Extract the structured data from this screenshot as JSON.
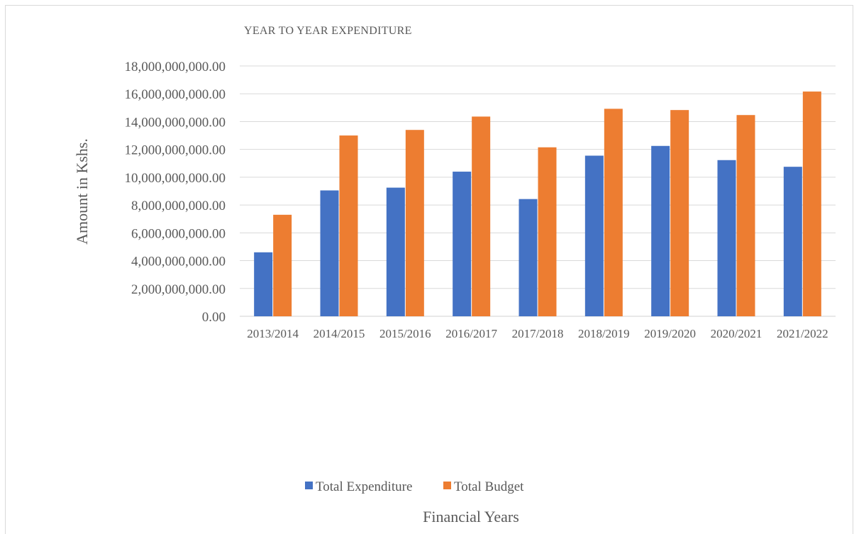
{
  "chart_data": {
    "type": "bar",
    "title": "YEAR TO YEAR EXPENDITURE",
    "xlabel": "Financial Years",
    "ylabel": "Amount in Kshs.",
    "categories": [
      "2013/2014",
      "2014/2015",
      "2015/2016",
      "2016/2017",
      "2017/2018",
      "2018/2019",
      "2019/2020",
      "2020/2021",
      "2021/2022"
    ],
    "series": [
      {
        "name": "Total Expenditure",
        "color": "#4472c4",
        "values": [
          4600000000,
          9050000000,
          9250000000,
          10400000000,
          8430000000,
          11550000000,
          12250000000,
          11230000000,
          10750000000
        ]
      },
      {
        "name": "Total Budget",
        "color": "#ed7d31",
        "values": [
          7300000000,
          13000000000,
          13400000000,
          14360000000,
          12150000000,
          14920000000,
          14830000000,
          14470000000,
          16160000000
        ]
      }
    ],
    "ylim": [
      0,
      18000000000
    ],
    "yticks": [
      "0.00",
      "2,000,000,000.00",
      "4,000,000,000.00",
      "6,000,000,000.00",
      "8,000,000,000.00",
      "10,000,000,000.00",
      "12,000,000,000.00",
      "14,000,000,000.00",
      "16,000,000,000.00",
      "18,000,000,000.00"
    ],
    "grid": true,
    "legend": "bottom"
  }
}
